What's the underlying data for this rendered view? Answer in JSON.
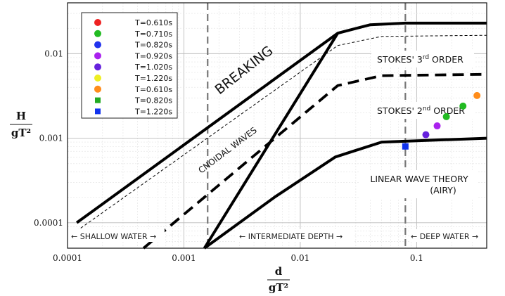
{
  "chart_data": {
    "type": "scatter",
    "title": "",
    "x_scale": "log",
    "y_scale": "log",
    "xlim": [
      0.0001,
      0.4
    ],
    "ylim": [
      5e-05,
      0.04
    ],
    "x_ticks": [
      "0.0001",
      "0.001",
      "0.01",
      "0.1"
    ],
    "x_tick_values": [
      0.0001,
      0.001,
      0.01,
      0.1
    ],
    "y_ticks": [
      "0.0001",
      "0.001",
      "0.01"
    ],
    "y_tick_values": [
      0.0001,
      0.001,
      0.01
    ],
    "xlabel": {
      "numerator": "d",
      "denominator": "gT²"
    },
    "ylabel": {
      "numerator": "H",
      "denominator": "gT²"
    },
    "grid": true,
    "legend_position": "top-left",
    "legend": [
      {
        "label": "T=0.610s",
        "color": "#ee2222",
        "marker": "circle"
      },
      {
        "label": "T=0.710s",
        "color": "#22bb22",
        "marker": "circle"
      },
      {
        "label": "T=0.820s",
        "color": "#2233ee",
        "marker": "circle"
      },
      {
        "label": "T=0.920s",
        "color": "#aa22ee",
        "marker": "circle"
      },
      {
        "label": "T=1.020s",
        "color": "#6622dd",
        "marker": "circle"
      },
      {
        "label": "T=1.220s",
        "color": "#eeee22",
        "marker": "circle"
      },
      {
        "label": "T=0.610s",
        "color": "#ff8c1a",
        "marker": "circle"
      },
      {
        "label": "T=0.820s",
        "color": "#22aa22",
        "marker": "square"
      },
      {
        "label": "T=1.220s",
        "color": "#1133ee",
        "marker": "square"
      }
    ],
    "series": [
      {
        "name": "T=1.020s",
        "marker": "circle",
        "color": "#6622dd",
        "points": [
          [
            0.12,
            0.0011
          ]
        ]
      },
      {
        "name": "T=0.920s",
        "marker": "circle",
        "color": "#aa22ee",
        "points": [
          [
            0.15,
            0.0014
          ]
        ]
      },
      {
        "name": "T=0.710s",
        "marker": "circle",
        "color": "#22bb22",
        "points": [
          [
            0.18,
            0.0018
          ],
          [
            0.25,
            0.0024
          ]
        ]
      },
      {
        "name": "T=0.610s",
        "marker": "circle",
        "color": "#ff8c1a",
        "points": [
          [
            0.33,
            0.0032
          ]
        ]
      },
      {
        "name": "T=1.220s",
        "marker": "square",
        "color": "#1133ee",
        "points": [
          [
            0.08,
            0.0008
          ]
        ]
      }
    ],
    "boundary_lines": [
      {
        "style": "thick-solid",
        "points": [
          [
            0.00012,
            0.0001
          ],
          [
            0.021,
            0.0175
          ],
          [
            0.04,
            0.022
          ],
          [
            0.08,
            0.023
          ],
          [
            0.4,
            0.023
          ]
        ]
      },
      {
        "style": "thin-dashed",
        "points": [
          [
            0.00012,
            8e-05
          ],
          [
            0.021,
            0.0125
          ],
          [
            0.05,
            0.016
          ],
          [
            0.4,
            0.0165
          ]
        ]
      },
      {
        "style": "thick-dashed",
        "points": [
          [
            0.00045,
            5e-05
          ],
          [
            0.021,
            0.0042
          ],
          [
            0.05,
            0.0055
          ],
          [
            0.4,
            0.0057
          ]
        ]
      },
      {
        "style": "thick-solid",
        "points": [
          [
            0.0015,
            5e-05
          ],
          [
            0.021,
            0.0175
          ]
        ]
      },
      {
        "style": "thick-solid",
        "points": [
          [
            0.0015,
            5e-05
          ],
          [
            0.006,
            0.0002
          ],
          [
            0.02,
            0.0006
          ],
          [
            0.05,
            0.0009
          ],
          [
            0.4,
            0.001
          ]
        ]
      }
    ],
    "vertical_lines": [
      {
        "x": 0.0016,
        "style": "dashed"
      },
      {
        "x": 0.08,
        "style": "dashed"
      }
    ],
    "region_labels": {
      "breaking": "BREAKING",
      "stokes3": "STOKES' 3",
      "stokes3_sup": "rd",
      "stokes3_rest": " ORDER",
      "stokes2": "STOKES' 2",
      "stokes2_sup": "nd",
      "stokes2_rest": " ORDER",
      "cnoidal": "CNOIDAL WAVES",
      "linear_line1": "LINEAR WAVE THEORY",
      "linear_line2": "(AIRY)"
    },
    "depth_labels": [
      "← SHALLOW WATER →",
      "← INTERMEDIATE DEPTH →",
      "← DEEP WATER →"
    ]
  }
}
